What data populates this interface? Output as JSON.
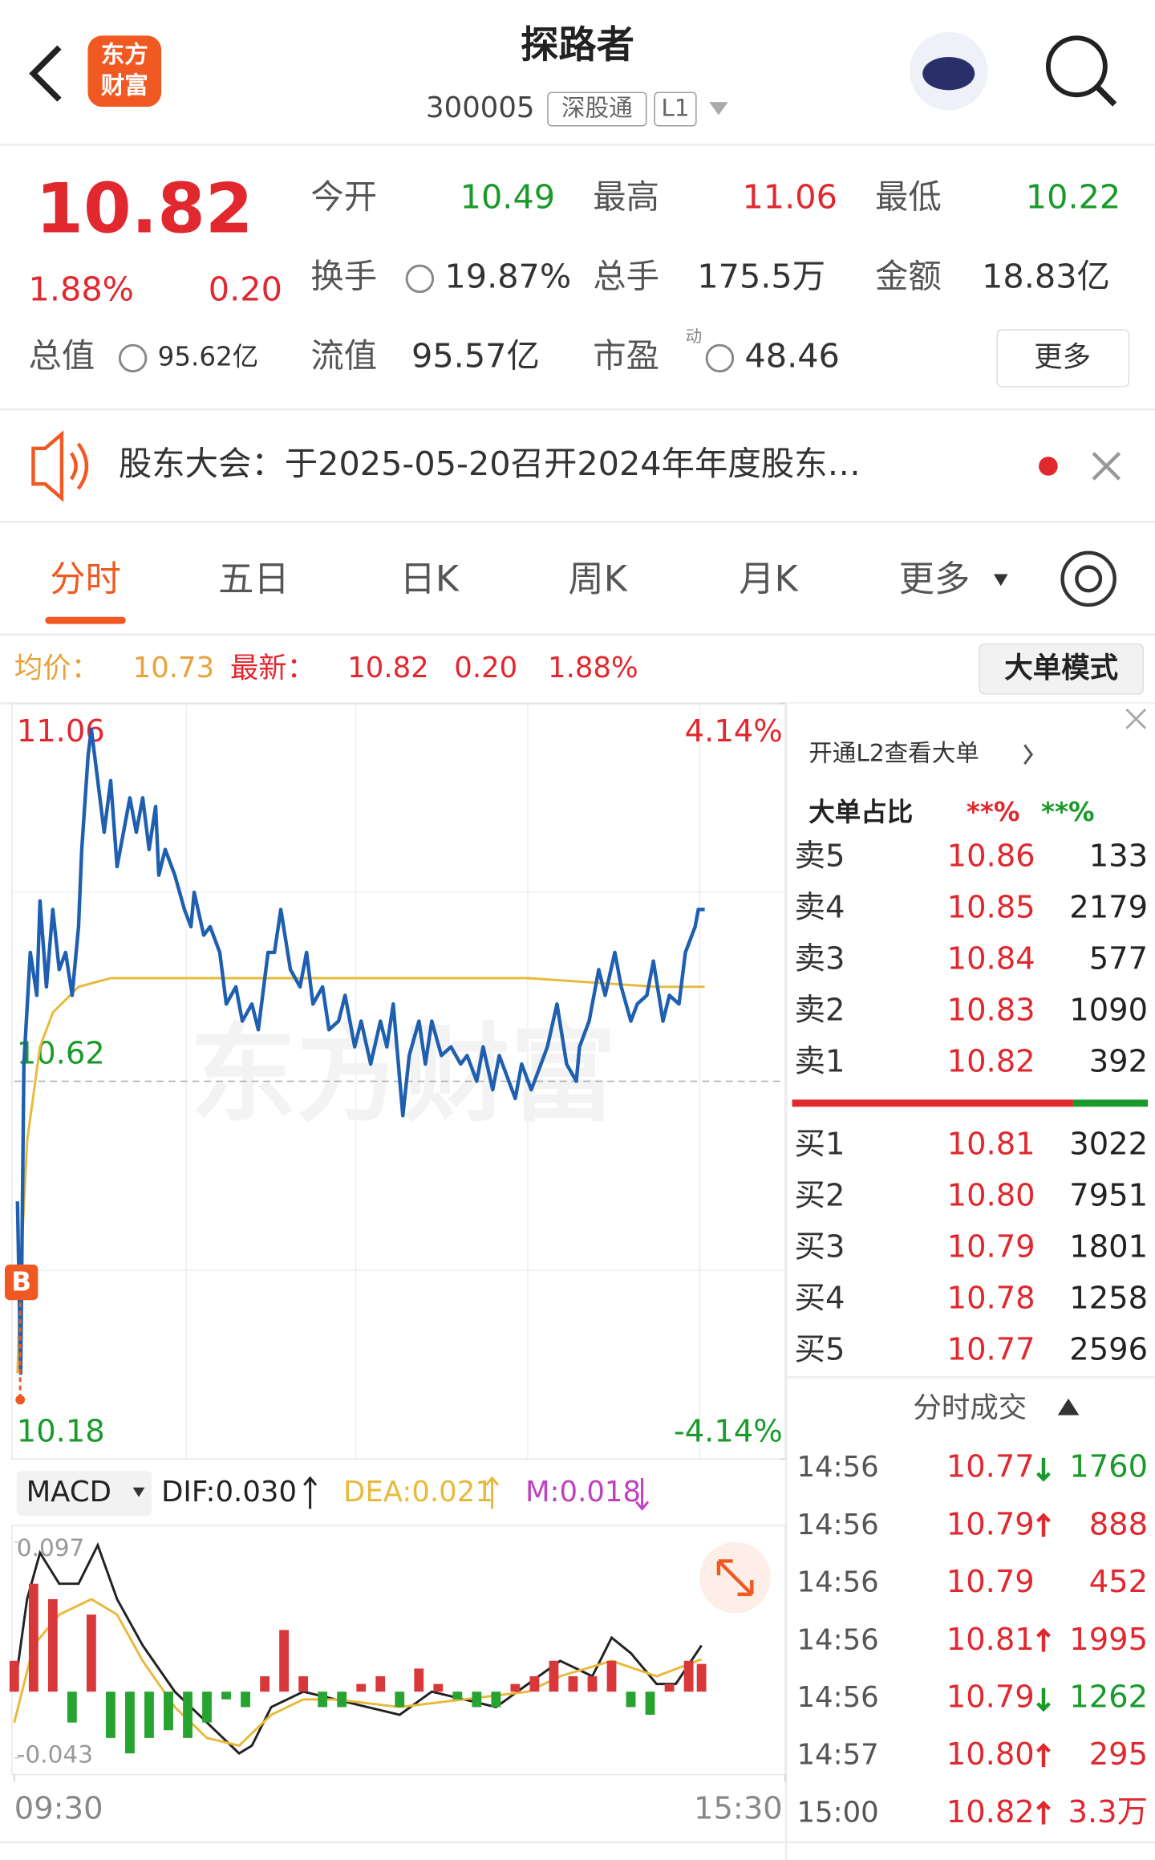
{
  "header": {
    "logo": [
      "东方",
      "财富"
    ],
    "title": "探路者",
    "code": "300005",
    "tags": [
      "深股通",
      "L1"
    ]
  },
  "quote": {
    "price": "10.82",
    "change_pct": "1.88%",
    "change": "0.20",
    "color": "#e0282e",
    "stats": [
      {
        "label": "今开",
        "value": "10.49",
        "color": "#1a9a2a"
      },
      {
        "label": "最高",
        "value": "11.06",
        "color": "#e0282e"
      },
      {
        "label": "最低",
        "value": "10.22",
        "color": "#1a9a2a"
      },
      {
        "label": "换手",
        "value": "19.87%",
        "info": true
      },
      {
        "label": "总手",
        "value": "175.5万"
      },
      {
        "label": "金额",
        "value": "18.83亿"
      },
      {
        "label": "总值",
        "value": "95.62亿",
        "info": true
      },
      {
        "label": "流值",
        "value": "95.57亿"
      },
      {
        "label": "市盈",
        "superscript": "动",
        "value": "48.46",
        "info": true
      }
    ],
    "more_button": "更多"
  },
  "notice": {
    "text": "股东大会：于2025-05-20召开2024年年度股东…"
  },
  "tabs": {
    "items": [
      "分时",
      "五日",
      "日K",
      "周K",
      "月K",
      "更多"
    ],
    "active": 0
  },
  "summary": {
    "avg_label": "均价：",
    "avg": "10.73",
    "latest_label": "最新：",
    "latest": "10.82",
    "change": "0.20",
    "change_pct": "1.88%",
    "mode_button": "大单模式"
  },
  "watermark": "东方财富",
  "trade_marker": "B",
  "chart_data": [
    {
      "type": "line",
      "xlim": [
        0,
        240
      ],
      "xticks": [
        {
          "value": 0,
          "label": "09:30"
        },
        {
          "value": 240,
          "label": "15:30"
        }
      ],
      "ylim": [
        10.18,
        11.06
      ],
      "yticks": [
        11.06,
        10.62,
        10.18
      ],
      "y2lim": [
        -4.14,
        4.14
      ],
      "y2ticks": [
        {
          "value": 4.14,
          "label": "4.14%"
        },
        {
          "value": -4.14,
          "label": "-4.14%"
        }
      ],
      "series": [
        {
          "color": "#1f5fb0",
          "x": [
            1,
            2,
            3,
            5,
            7,
            8,
            10,
            12,
            14,
            16,
            18,
            20,
            21,
            23,
            24,
            26,
            28,
            30,
            32,
            34,
            36,
            38,
            40,
            42,
            44,
            45,
            47,
            50,
            53,
            55,
            56,
            59,
            61,
            64,
            66,
            69,
            71,
            74,
            76,
            79,
            81,
            83,
            86,
            89,
            91,
            93,
            96,
            98,
            101,
            103,
            106,
            108,
            111,
            114,
            116,
            118,
            121,
            123,
            126,
            128,
            130,
            133,
            136,
            139,
            141,
            144,
            146,
            149,
            151,
            154,
            156,
            158,
            161,
            164,
            166,
            169,
            172,
            175,
            176,
            179,
            182,
            184,
            187,
            189,
            192,
            194,
            197,
            199,
            202,
            204,
            207,
            209,
            212,
            213,
            215
          ],
          "values": [
            10.48,
            10.28,
            10.64,
            10.77,
            10.72,
            10.83,
            10.73,
            10.82,
            10.75,
            10.77,
            10.72,
            10.8,
            10.89,
            11.0,
            11.03,
            10.97,
            10.91,
            10.97,
            10.87,
            10.91,
            10.95,
            10.91,
            10.95,
            10.89,
            10.94,
            10.86,
            10.89,
            10.86,
            10.82,
            10.8,
            10.84,
            10.79,
            10.8,
            10.77,
            10.71,
            10.73,
            10.69,
            10.71,
            10.68,
            10.77,
            10.77,
            10.82,
            10.75,
            10.73,
            10.77,
            10.71,
            10.73,
            10.68,
            10.69,
            10.72,
            10.66,
            10.69,
            10.64,
            10.69,
            10.66,
            10.71,
            10.58,
            10.65,
            10.69,
            10.64,
            10.69,
            10.65,
            10.66,
            10.64,
            10.65,
            10.62,
            10.66,
            10.61,
            10.65,
            10.62,
            10.6,
            10.64,
            10.61,
            10.64,
            10.66,
            10.71,
            10.64,
            10.62,
            10.66,
            10.69,
            10.75,
            10.72,
            10.77,
            10.73,
            10.69,
            10.71,
            10.72,
            10.76,
            10.69,
            10.72,
            10.71,
            10.77,
            10.8,
            10.82,
            10.82
          ]
        },
        {
          "color": "#e8b93a",
          "x": [
            1,
            2,
            4,
            8,
            12,
            20,
            30,
            45,
            80,
            120,
            160,
            200,
            215
          ],
          "values": [
            10.28,
            10.4,
            10.55,
            10.66,
            10.7,
            10.73,
            10.74,
            10.74,
            10.74,
            10.74,
            10.74,
            10.73,
            10.73
          ]
        }
      ]
    },
    {
      "type": "macd",
      "title": "MACD",
      "xlim": [
        0,
        240
      ],
      "ylim": [
        -0.043,
        0.097
      ],
      "yticks": [
        0.097,
        -0.043
      ],
      "series": [
        {
          "name": "DIF:0.030",
          "color": "#222222",
          "trend": "up",
          "kind": "line",
          "x": [
            0,
            4,
            8,
            14,
            20,
            26,
            32,
            40,
            50,
            60,
            70,
            74,
            80,
            90,
            100,
            110,
            120,
            130,
            140,
            150,
            160,
            170,
            180,
            186,
            192,
            200,
            206,
            214
          ],
          "values": [
            0.0,
            0.06,
            0.09,
            0.07,
            0.07,
            0.095,
            0.06,
            0.03,
            0.0,
            -0.02,
            -0.04,
            -0.035,
            -0.01,
            0.0,
            -0.005,
            -0.01,
            -0.015,
            0.0,
            -0.005,
            -0.01,
            0.005,
            0.02,
            0.01,
            0.035,
            0.025,
            0.005,
            0.005,
            0.03
          ]
        },
        {
          "name": "DEA:0.021",
          "color": "#e8b93a",
          "trend": "up",
          "kind": "line",
          "x": [
            0,
            6,
            14,
            24,
            32,
            40,
            50,
            60,
            70,
            80,
            90,
            100,
            120,
            140,
            160,
            170,
            186,
            200,
            214
          ],
          "values": [
            -0.02,
            0.03,
            0.05,
            0.06,
            0.05,
            0.02,
            -0.01,
            -0.03,
            -0.035,
            -0.015,
            -0.005,
            -0.005,
            -0.01,
            -0.005,
            0.0,
            0.01,
            0.02,
            0.01,
            0.021
          ]
        },
        {
          "name": "M:0.018",
          "color": "#c040c0",
          "trend": "down",
          "kind": "bar",
          "up_color": "#d9383a",
          "down_color": "#27a32f",
          "x": [
            0,
            6,
            12,
            18,
            24,
            30,
            36,
            42,
            48,
            54,
            60,
            66,
            72,
            78,
            84,
            90,
            96,
            102,
            108,
            114,
            120,
            126,
            132,
            138,
            144,
            150,
            156,
            162,
            168,
            174,
            180,
            186,
            192,
            198,
            204,
            210,
            214
          ],
          "values": [
            0.02,
            0.07,
            0.06,
            -0.02,
            0.05,
            -0.03,
            -0.04,
            -0.03,
            -0.025,
            -0.03,
            -0.02,
            -0.005,
            -0.01,
            0.01,
            0.04,
            0.01,
            -0.01,
            -0.01,
            0.005,
            0.01,
            -0.01,
            0.015,
            0.005,
            -0.005,
            -0.01,
            -0.01,
            0.005,
            0.01,
            0.02,
            0.01,
            0.01,
            0.02,
            -0.01,
            -0.015,
            0.005,
            0.02,
            0.018
          ]
        }
      ]
    }
  ],
  "order_book": {
    "promo": "开通L2查看大单",
    "ratio_label": "大单占比",
    "ratio_sell": "**%",
    "ratio_buy": "**%",
    "asks": [
      {
        "label": "卖5",
        "price": "10.86",
        "volume": 133
      },
      {
        "label": "卖4",
        "price": "10.85",
        "volume": 2179
      },
      {
        "label": "卖3",
        "price": "10.84",
        "volume": 577
      },
      {
        "label": "卖2",
        "price": "10.83",
        "volume": 1090
      },
      {
        "label": "卖1",
        "price": "10.82",
        "volume": 392
      }
    ],
    "bids": [
      {
        "label": "买1",
        "price": "10.81",
        "volume": 3022
      },
      {
        "label": "买2",
        "price": "10.80",
        "volume": 7951
      },
      {
        "label": "买3",
        "price": "10.79",
        "volume": 1801
      },
      {
        "label": "买4",
        "price": "10.78",
        "volume": 1258
      },
      {
        "label": "买5",
        "price": "10.77",
        "volume": 2596
      }
    ]
  },
  "trades": {
    "title": "分时成交",
    "rows": [
      {
        "time": "14:56",
        "price": "10.77",
        "dir": "down",
        "volume": 1760
      },
      {
        "time": "14:56",
        "price": "10.79",
        "dir": "up",
        "volume": 888
      },
      {
        "time": "14:56",
        "price": "10.79",
        "volume": 452
      },
      {
        "time": "14:56",
        "price": "10.81",
        "dir": "up",
        "volume": 1995
      },
      {
        "time": "14:56",
        "price": "10.79",
        "dir": "down",
        "volume": 1262
      },
      {
        "time": "14:57",
        "price": "10.80",
        "dir": "up",
        "volume": 295
      },
      {
        "time": "15:00",
        "price": "10.82",
        "dir": "up",
        "volume": "3.3万"
      }
    ]
  }
}
